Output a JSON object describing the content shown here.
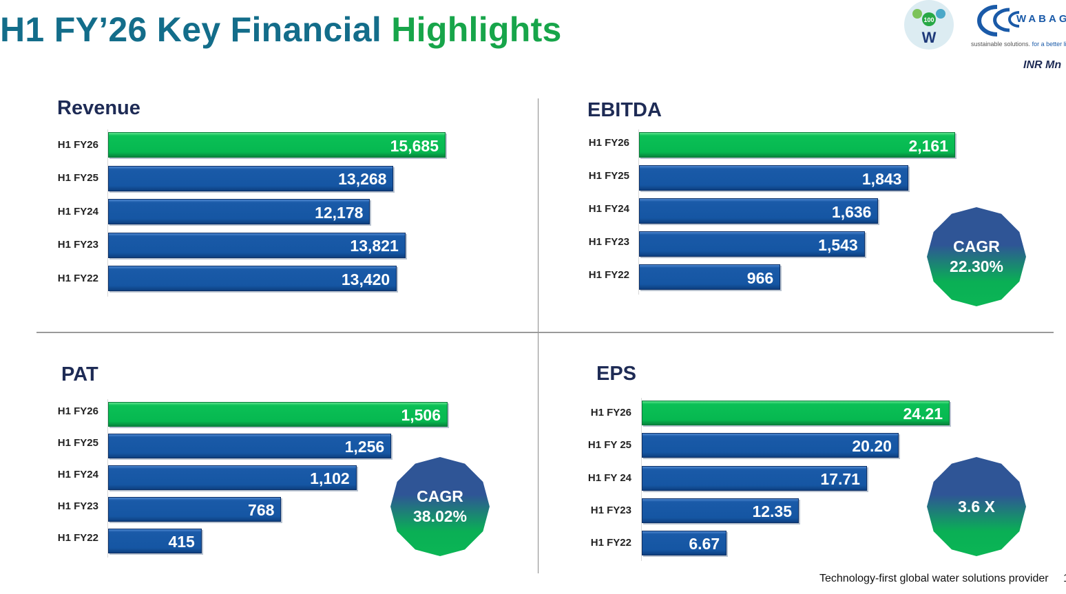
{
  "header": {
    "title_part1": "H1 FY’26 Key Financial",
    "title_part2": "Highlights",
    "unit": "INR Mn",
    "logo_centenary_text": "100 WABAG GROUP SINCE 1924",
    "logo_brand": "WABAG",
    "tagline_part1": "sustainable solutions.",
    "tagline_part2": "for a better life."
  },
  "colors": {
    "current_bar": "#06b850",
    "prior_bar": "#1556a3",
    "title_teal": "#136d8a",
    "title_green": "#17a54a",
    "chart_title": "#1e2b55"
  },
  "chart_data": [
    {
      "type": "bar",
      "orientation": "horizontal",
      "title": "Revenue",
      "categories": [
        "H1 FY26",
        "H1 FY25",
        "H1 FY24",
        "H1 FY23",
        "H1 FY22"
      ],
      "values": [
        15685,
        13268,
        12178,
        13821,
        13420
      ],
      "labels": [
        "15,685",
        "13,268",
        "12,178",
        "13,821",
        "13,420"
      ],
      "highlight": "H1 FY26",
      "badge": null
    },
    {
      "type": "bar",
      "orientation": "horizontal",
      "title": "EBITDA",
      "categories": [
        "H1 FY26",
        "H1 FY25",
        "H1 FY24",
        "H1 FY23",
        "H1 FY22"
      ],
      "values": [
        2161,
        1843,
        1636,
        1543,
        966
      ],
      "labels": [
        "2,161",
        "1,843",
        "1,636",
        "1,543",
        "966"
      ],
      "highlight": "H1 FY26",
      "badge": {
        "line1": "CAGR",
        "line2": "22.30%"
      }
    },
    {
      "type": "bar",
      "orientation": "horizontal",
      "title": "PAT",
      "categories": [
        "H1 FY26",
        "H1 FY25",
        "H1 FY24",
        "H1 FY23",
        "H1 FY22"
      ],
      "values": [
        1506,
        1256,
        1102,
        768,
        415
      ],
      "labels": [
        "1,506",
        "1,256",
        "1,102",
        "768",
        "415"
      ],
      "highlight": "H1 FY26",
      "badge": {
        "line1": "CAGR",
        "line2": "38.02%"
      }
    },
    {
      "type": "bar",
      "orientation": "horizontal",
      "title": "EPS",
      "categories": [
        "H1 FY26",
        "H1 FY 25",
        "H1 FY 24",
        "H1 FY23",
        "H1 FY22"
      ],
      "values": [
        24.21,
        20.2,
        17.71,
        12.35,
        6.67
      ],
      "labels": [
        "24.21",
        "20.20",
        "17.71",
        "12.35",
        "6.67"
      ],
      "highlight": "H1 FY26",
      "badge": {
        "line1": "3.6 X",
        "line2": ""
      }
    }
  ],
  "footer": {
    "text": "Technology-first global water solutions provider",
    "page_number": "1"
  }
}
